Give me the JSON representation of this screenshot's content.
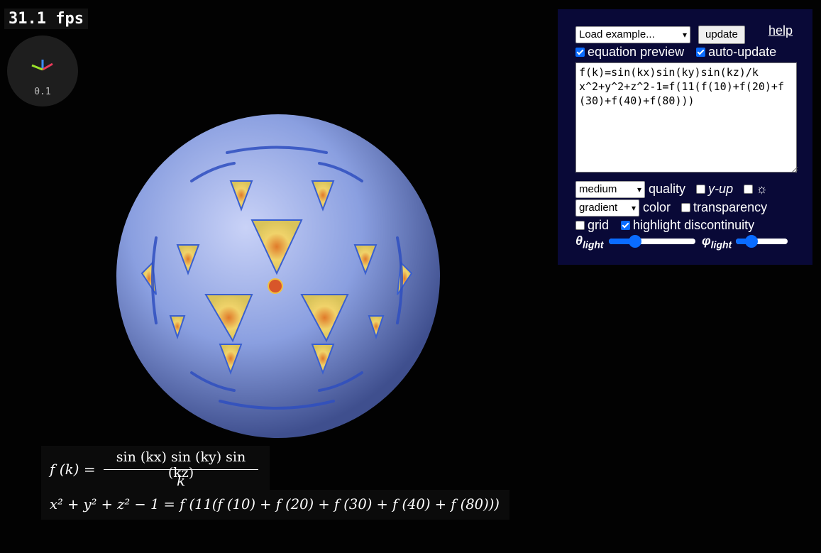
{
  "fps": "31.1 fps",
  "axes": {
    "scale": "0.1",
    "colors": {
      "x": "#e83a5a",
      "y": "#3a8cff",
      "z": "#9be22a"
    }
  },
  "panel": {
    "example_select": "Load example...",
    "update_label": "update",
    "help_label": "help",
    "equation_preview_label": "equation preview",
    "equation_preview_checked": true,
    "auto_update_label": "auto-update",
    "auto_update_checked": true,
    "equation_text": "f(k)=sin(kx)sin(ky)sin(kz)/k\nx^2+y^2+z^2-1=f(11(f(10)+f(20)+f(30)+f(40)+f(80)))",
    "quality_select": "medium",
    "quality_label": "quality",
    "y_up_label": "y-up",
    "y_up_checked": false,
    "light_icon": "sun-icon",
    "light_checked": false,
    "color_select": "gradient",
    "color_label": "color",
    "transparency_label": "transparency",
    "transparency_checked": false,
    "grid_label": "grid",
    "grid_checked": false,
    "highlight_label": "highlight discontinuity",
    "highlight_checked": true,
    "theta_symbol": "θ",
    "theta_sub": "light",
    "theta_value": 0.3,
    "phi_symbol": "φ",
    "phi_sub": "light",
    "phi_value": 0.3
  },
  "preview": {
    "line1": {
      "lhs": "f (k) =",
      "num": "sin (kx) sin (ky) sin (kz)",
      "den": "k"
    },
    "line2": "x² + y² + z² − 1 = f (11(f (10) + f (20) + f (30) + f (40) + f (80)))"
  },
  "colors": {
    "panel_bg": "#090937",
    "accent": "#0a6cff",
    "surface": "#8a9fe0"
  }
}
